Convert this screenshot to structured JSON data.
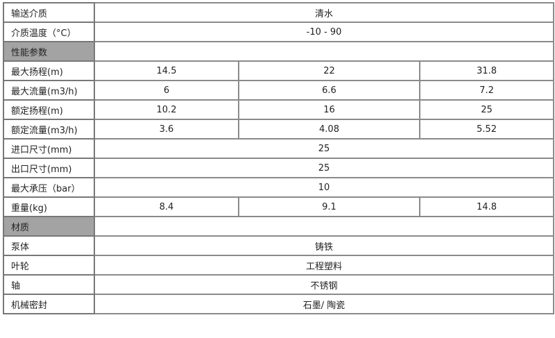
{
  "rows": [
    {
      "label": "输送介质",
      "values": [
        "清水"
      ]
    },
    {
      "label": "介质温度（°C）",
      "values": [
        "-10 - 90"
      ]
    },
    {
      "label": "性能参数",
      "section": true,
      "values": [
        ""
      ]
    },
    {
      "label": "最大扬程(m)",
      "values": [
        "14.5",
        "22",
        "31.8"
      ]
    },
    {
      "label": "最大流量(m3/h)",
      "values": [
        "6",
        "6.6",
        "7.2"
      ]
    },
    {
      "label": "额定扬程(m)",
      "values": [
        "10.2",
        "16",
        "25"
      ]
    },
    {
      "label": "额定流量(m3/h)",
      "values": [
        "3.6",
        "4.08",
        "5.52"
      ]
    },
    {
      "label": "进口尺寸(mm)",
      "values": [
        "25"
      ]
    },
    {
      "label": "出口尺寸(mm)",
      "values": [
        "25"
      ]
    },
    {
      "label": "最大承压（bar）",
      "values": [
        "10"
      ]
    },
    {
      "label": "重量(kg)",
      "values": [
        "8.4",
        "9.1",
        "14.8"
      ]
    },
    {
      "label": "材质",
      "section": true,
      "values": [
        ""
      ]
    },
    {
      "label": "泵体",
      "values": [
        "铸铁"
      ]
    },
    {
      "label": "叶轮",
      "values": [
        "工程塑料"
      ]
    },
    {
      "label": "轴",
      "values": [
        "不锈钢"
      ]
    },
    {
      "label": "机械密封",
      "values": [
        "石墨/ 陶瓷"
      ]
    }
  ],
  "colors": {
    "section_fill": "#a3a3a3",
    "border": "#8a8a8a"
  }
}
